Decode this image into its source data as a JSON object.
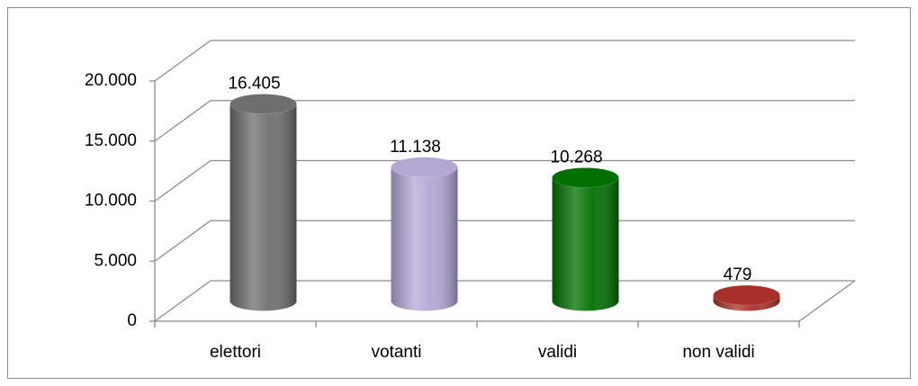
{
  "chart_data": {
    "type": "bar3d",
    "categories": [
      "elettori",
      "votanti",
      "validi",
      "non validi"
    ],
    "values": [
      16405,
      11138,
      10268,
      479
    ],
    "value_labels": [
      "16.405",
      "11.138",
      "10.268",
      "479"
    ],
    "colors": [
      "#6e6e6e",
      "#b4a7d6",
      "#007000",
      "#a8302a"
    ],
    "ylim": [
      0,
      20000
    ],
    "yticks": [
      0,
      {
        "value": 5000,
        "label": "5.000"
      },
      {
        "value": 10000,
        "label": "10.000"
      },
      {
        "value": 15000,
        "label": "15.000"
      },
      {
        "value": 20000,
        "label": "20.000"
      }
    ],
    "grid": true
  }
}
